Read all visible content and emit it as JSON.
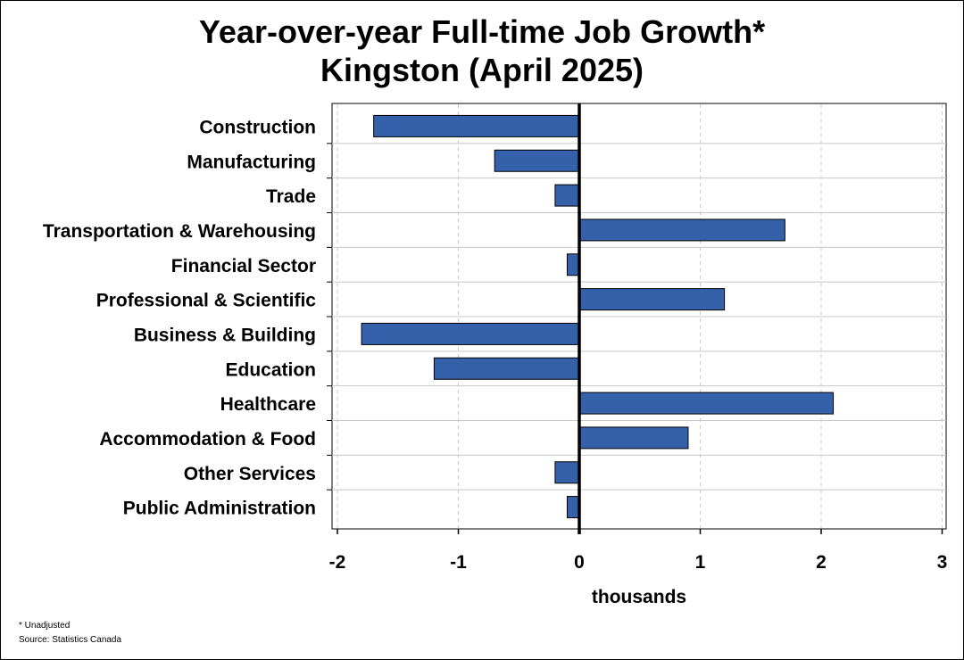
{
  "chart_data": {
    "type": "bar",
    "orientation": "horizontal",
    "title": "Year-over-year Full-time Job Growth*",
    "subtitle": "Kingston (April 2025)",
    "xlabel": "thousands",
    "xlim": [
      -2,
      3
    ],
    "xticks": [
      "-2",
      "-1",
      "0",
      "1",
      "2",
      "3"
    ],
    "grid": true,
    "bar_color": "#3560AA",
    "categories": [
      "Construction",
      "Manufacturing",
      "Trade",
      "Transportation & Warehousing",
      "Financial Sector",
      "Professional & Scientific",
      "Business & Building",
      "Education",
      "Healthcare",
      "Accommodation & Food",
      "Other Services",
      "Public Administration"
    ],
    "values": [
      -1.7,
      -0.7,
      -0.2,
      1.7,
      -0.1,
      1.2,
      -1.8,
      -1.2,
      2.1,
      0.9,
      -0.2,
      -0.1
    ]
  },
  "footnotes": {
    "note": "* Unadjusted",
    "source": "Source: Statistics Canada"
  }
}
